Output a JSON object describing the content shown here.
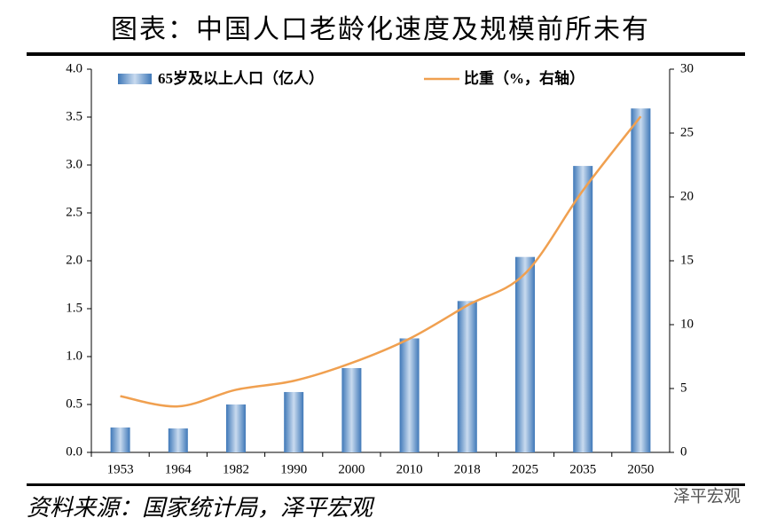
{
  "chart_data": {
    "type": "bar-line",
    "title": "图表：中国人口老龄化速度及规模前所未有",
    "categories": [
      "1953",
      "1964",
      "1982",
      "1990",
      "2000",
      "2010",
      "2018",
      "2025",
      "2035",
      "2050"
    ],
    "series": [
      {
        "name": "65岁及以上人口（亿人）",
        "type": "bar",
        "color": "#3f78b8",
        "values": [
          0.26,
          0.25,
          0.5,
          0.63,
          0.88,
          1.19,
          1.58,
          2.04,
          2.99,
          3.59
        ]
      },
      {
        "name": "比重（%，右轴）",
        "type": "line",
        "axis": "y2",
        "color": "#f0a050",
        "values": [
          4.4,
          3.6,
          4.9,
          5.6,
          7.0,
          8.9,
          11.5,
          14.0,
          20.5,
          26.3
        ]
      }
    ],
    "ylim": [
      0,
      4
    ],
    "yticks": [
      {
        "value": 0,
        "label": "0.0"
      },
      {
        "value": 0.5,
        "label": "0.5"
      },
      {
        "value": 1,
        "label": "1.0"
      },
      {
        "value": 1.5,
        "label": "1.5"
      },
      {
        "value": 2,
        "label": "2.0"
      },
      {
        "value": 2.5,
        "label": "2.5"
      },
      {
        "value": 3,
        "label": "3.0"
      },
      {
        "value": 3.5,
        "label": "3.5"
      },
      {
        "value": 4,
        "label": "4.0"
      }
    ],
    "y2lim": [
      0,
      30
    ],
    "y2ticks": [
      0,
      5,
      10,
      15,
      20,
      25,
      30
    ],
    "grid": false,
    "source": "资料来源：国家统计局，泽平宏观",
    "watermark": "泽平宏观"
  }
}
